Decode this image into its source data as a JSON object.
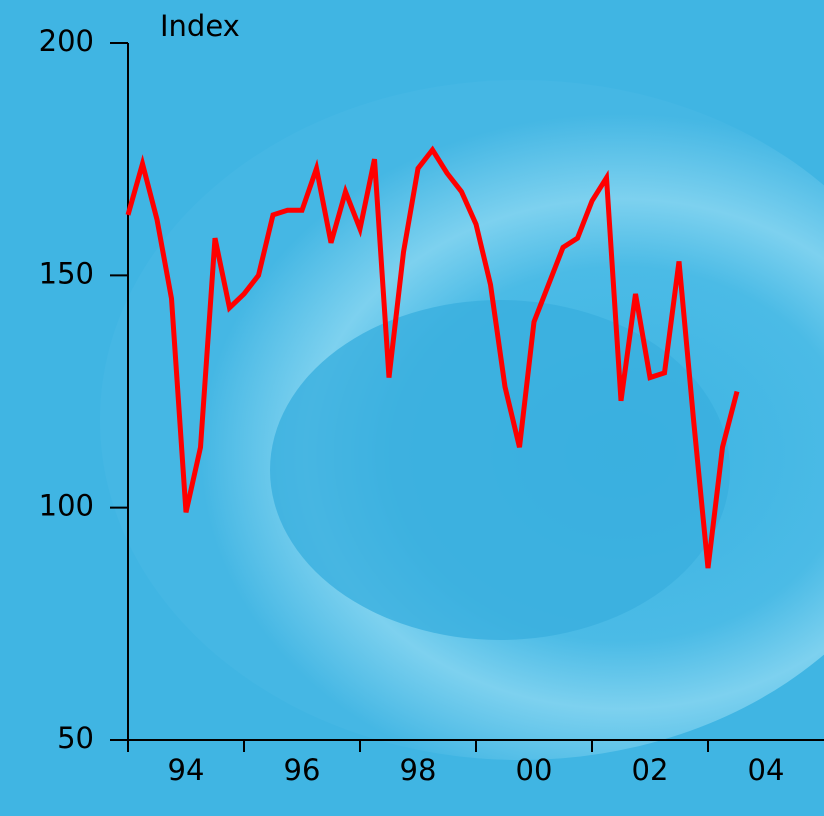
{
  "chart_data": {
    "type": "line",
    "y_label": "Index",
    "x": [
      1994,
      1994.25,
      1994.5,
      1994.75,
      1995,
      1995.25,
      1995.5,
      1995.75,
      1996,
      1996.25,
      1996.5,
      1996.75,
      1997,
      1997.25,
      1997.5,
      1997.75,
      1998,
      1998.25,
      1998.5,
      1998.75,
      1999,
      1999.25,
      1999.5,
      1999.75,
      2000,
      2000.25,
      2000.5,
      2000.75,
      2001,
      2001.25,
      2001.5,
      2001.75,
      2002,
      2002.25,
      2002.5,
      2002.75,
      2003,
      2003.25,
      2003.5,
      2003.75,
      2004,
      2004.25,
      2004.5
    ],
    "series": [
      {
        "color": "#ff0000",
        "values": [
          163,
          174,
          162,
          145,
          99,
          113,
          158,
          143,
          146,
          150,
          163,
          164,
          164,
          173,
          157,
          168,
          160,
          175,
          128,
          155,
          173,
          177,
          172,
          168,
          161,
          148,
          126,
          113,
          140,
          148,
          156,
          158,
          166,
          171,
          123,
          146,
          128,
          129,
          153,
          119,
          87,
          113,
          125
        ]
      }
    ],
    "xlim": [
      1994,
      2006
    ],
    "xticks": [
      1994,
      1996,
      1998,
      2000,
      2002,
      2004
    ],
    "xtick_labels": [
      {
        "value": 1995,
        "label": "94"
      },
      {
        "value": 1997,
        "label": "96"
      },
      {
        "value": 1999,
        "label": "98"
      },
      {
        "value": 2001,
        "label": "00"
      },
      {
        "value": 2003,
        "label": "02"
      },
      {
        "value": 2005,
        "label": "04"
      }
    ],
    "ylim": [
      50,
      200
    ],
    "yticks": [
      50,
      100,
      150,
      200
    ]
  }
}
